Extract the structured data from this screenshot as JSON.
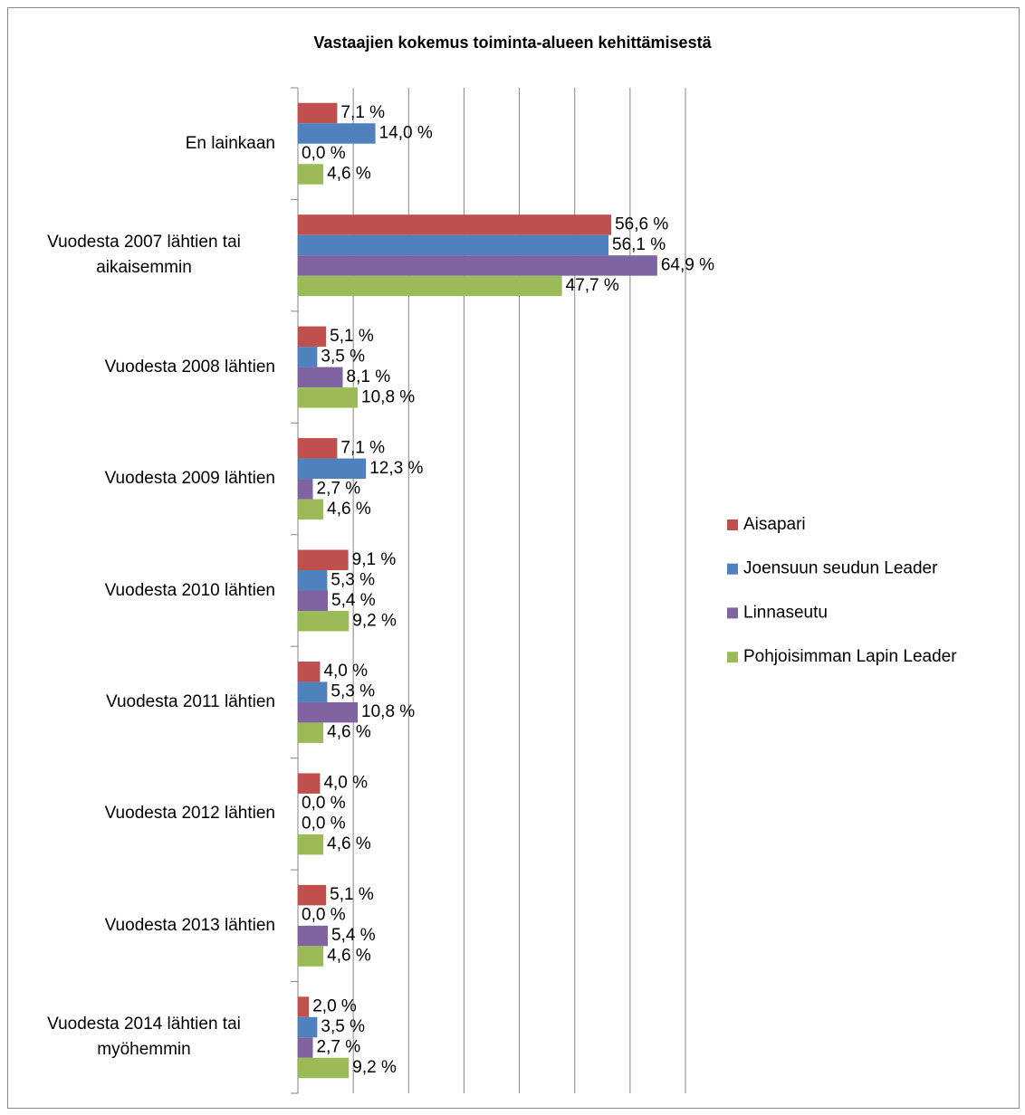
{
  "chart_data": {
    "type": "barh",
    "title": "Vastaajien kokemus toiminta-alueen kehittämisestä",
    "categories": [
      "En lainkaan",
      "Vuodesta 2007 lähtien tai aikaisemmin",
      "Vuodesta 2008 lähtien",
      "Vuodesta 2009 lähtien",
      "Vuodesta 2010 lähtien",
      "Vuodesta 2011 lähtien",
      "Vuodesta 2012 lähtien",
      "Vuodesta 2013 lähtien",
      "Vuodesta 2014 lähtien tai myöhemmin"
    ],
    "series": [
      {
        "name": "Aisapari",
        "color": "#c0504d",
        "values": [
          7.1,
          56.6,
          5.1,
          7.1,
          9.1,
          4.0,
          4.0,
          5.1,
          2.0
        ],
        "value_labels": [
          "7,1 %",
          "56,6 %",
          "5,1 %",
          "7,1 %",
          "9,1 %",
          "4,0 %",
          "4,0 %",
          "5,1 %",
          "2,0 %"
        ]
      },
      {
        "name": "Joensuun seudun Leader",
        "color": "#4f81bd",
        "values": [
          14.0,
          56.1,
          3.5,
          12.3,
          5.3,
          5.3,
          0.0,
          0.0,
          3.5
        ],
        "value_labels": [
          "14,0 %",
          "56,1 %",
          "3,5 %",
          "12,3 %",
          "5,3 %",
          "5,3 %",
          "0,0 %",
          "0,0 %",
          "3,5 %"
        ]
      },
      {
        "name": "Linnaseutu",
        "color": "#8064a2",
        "values": [
          0.0,
          64.9,
          8.1,
          2.7,
          5.4,
          10.8,
          0.0,
          5.4,
          2.7
        ],
        "value_labels": [
          "0,0 %",
          "64,9 %",
          "8,1 %",
          "2,7 %",
          "5,4 %",
          "10,8 %",
          "0,0 %",
          "5,4 %",
          "2,7 %"
        ]
      },
      {
        "name": "Pohjoisimman Lapin Leader",
        "color": "#9bbb59",
        "values": [
          4.6,
          47.7,
          10.8,
          4.6,
          9.2,
          4.6,
          4.6,
          4.6,
          9.2
        ],
        "value_labels": [
          "4,6 %",
          "47,7 %",
          "10,8 %",
          "4,6 %",
          "9,2 %",
          "4,6 %",
          "4,6 %",
          "4,6 %",
          "9,2 %"
        ]
      }
    ],
    "xlim": [
      0,
      70
    ],
    "xticks": [
      0,
      10,
      20,
      30,
      40,
      50,
      60,
      70
    ],
    "grid": true,
    "legend": "right"
  }
}
